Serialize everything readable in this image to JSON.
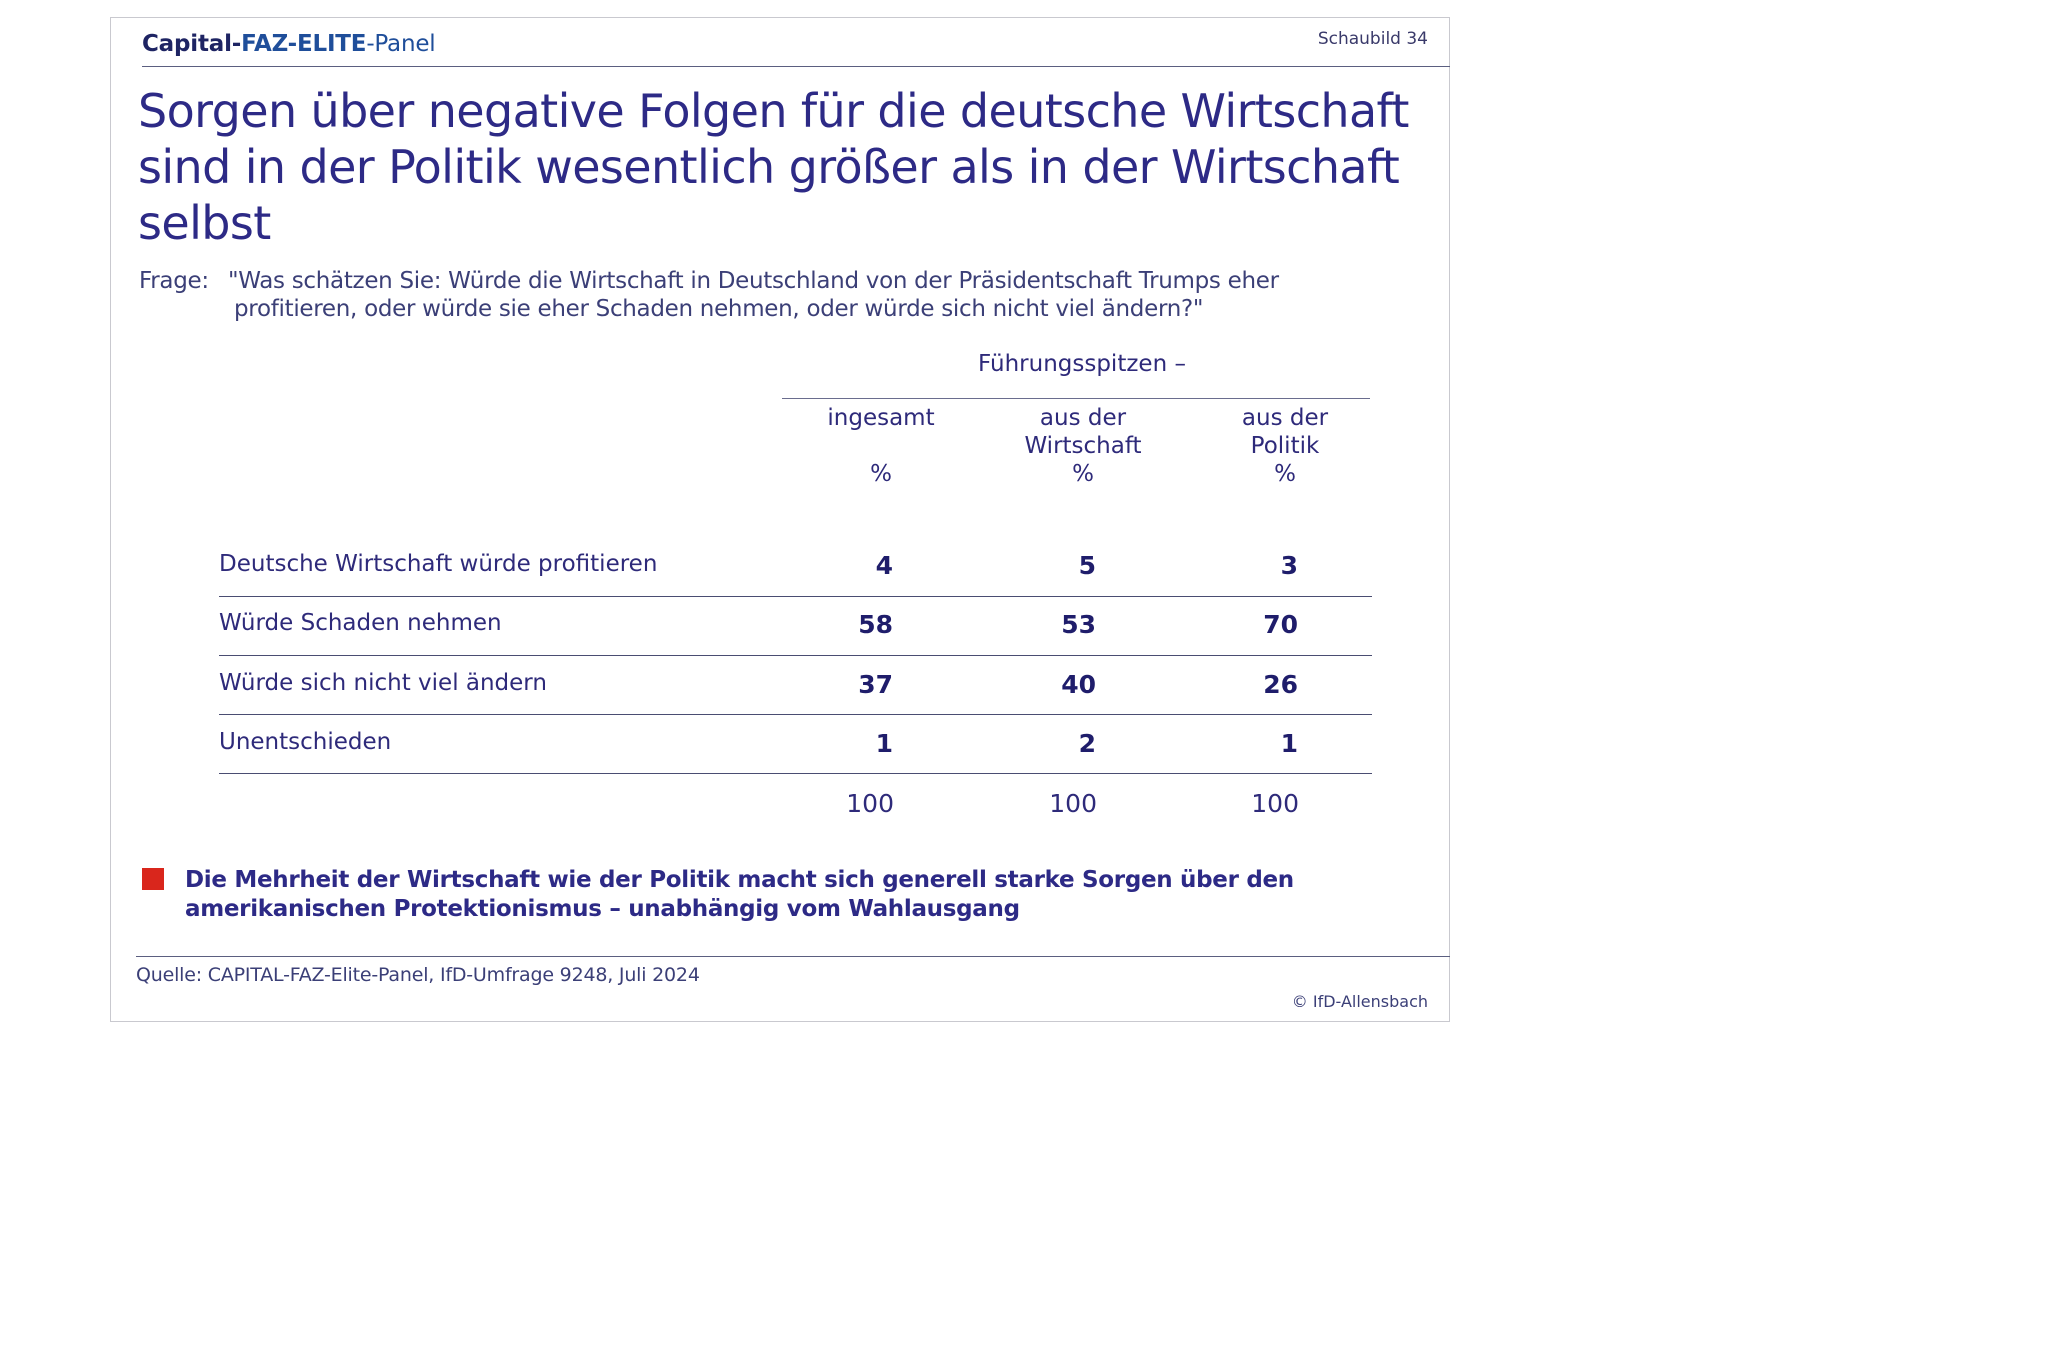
{
  "header": {
    "brand_part1": "Capital-",
    "brand_part2": "FAZ-ELITE",
    "brand_part3": "-Panel",
    "figure_label": "Schaubild 34"
  },
  "title": "Sorgen über negative Folgen für die deutsche Wirtschaft sind in der Politik wesentlich größer als in der Wirtschaft selbst",
  "question": {
    "label": "Frage:",
    "line1": "\"Was schätzen Sie: Würde die Wirtschaft in Deutschland von der Präsidentschaft Trumps eher",
    "line2": "profitieren, oder würde sie eher Schaden nehmen, oder würde sich nicht viel ändern?\""
  },
  "table": {
    "group_header": "Führungsspitzen –",
    "columns": [
      {
        "line1": "ingesamt",
        "line2": "",
        "unit": "%"
      },
      {
        "line1": "aus der",
        "line2": "Wirtschaft",
        "unit": "%"
      },
      {
        "line1": "aus der",
        "line2": "Politik",
        "unit": "%"
      }
    ],
    "rows": [
      {
        "label": "Deutsche Wirtschaft würde profitieren",
        "values": [
          "4",
          "5",
          "3"
        ]
      },
      {
        "label": "Würde Schaden nehmen",
        "values": [
          "58",
          "53",
          "70"
        ]
      },
      {
        "label": "Würde sich nicht viel ändern",
        "values": [
          "37",
          "40",
          "26"
        ]
      },
      {
        "label": "Unentschieden",
        "values": [
          "1",
          "2",
          "1"
        ]
      }
    ],
    "totals": [
      "100",
      "100",
      "100"
    ]
  },
  "finding": {
    "line1": "Die Mehrheit der Wirtschaft wie der Politik macht sich generell starke Sorgen über den",
    "line2": "amerikanischen Protektionismus – unabhängig vom Wahlausgang",
    "marker_color": "#d9261c"
  },
  "footer": {
    "source": "Quelle: CAPITAL-FAZ-Elite-Panel, IfD-Umfrage 9248, Juli 2024",
    "copyright": "© IfD-Allensbach"
  }
}
